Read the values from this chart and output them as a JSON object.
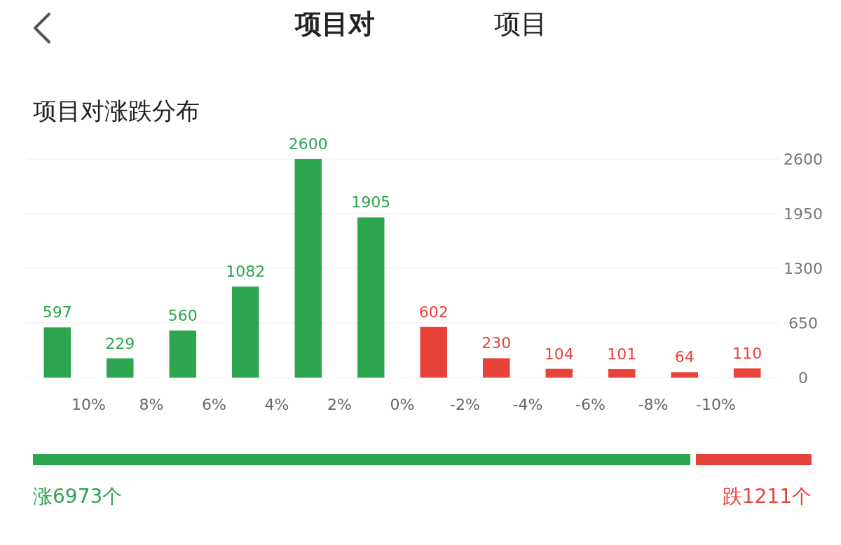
{
  "chart_data": [
    {
      "type": "histogram",
      "title": "项目对涨跌分布",
      "annotations": [
        "项目对",
        "项目",
        "涨6973个",
        "跌1211个"
      ],
      "bins": [
        12,
        10,
        8,
        6,
        4,
        2,
        0,
        -2,
        -4,
        -6,
        -8,
        -10,
        -12
      ],
      "values": [
        597,
        229,
        560,
        1082,
        2600,
        1905,
        602,
        230,
        104,
        101,
        64,
        110
      ],
      "colors": [
        "#2da44e",
        "#2da44e",
        "#2da44e",
        "#2da44e",
        "#2da44e",
        "#2da44e",
        "#e8433a",
        "#e8433a",
        "#e8433a",
        "#e8433a",
        "#e8433a",
        "#e8433a"
      ],
      "xlim": [
        12,
        -12
      ],
      "xticks": [
        {
          "value": 10,
          "label": "10%"
        },
        {
          "value": 8,
          "label": "8%"
        },
        {
          "value": 6,
          "label": "6%"
        },
        {
          "value": 4,
          "label": "4%"
        },
        {
          "value": 2,
          "label": "2%"
        },
        {
          "value": 0,
          "label": "0%"
        },
        {
          "value": -2,
          "label": "-2%"
        },
        {
          "value": -4,
          "label": "-4%"
        },
        {
          "value": -6,
          "label": "-6%"
        },
        {
          "value": -8,
          "label": "-8%"
        },
        {
          "value": -10,
          "label": "-10%"
        }
      ],
      "ylim": [
        0,
        2600
      ],
      "yticks": [
        0,
        650,
        1300,
        1950,
        2600
      ],
      "grid": "y",
      "data_labels": true
    }
  ]
}
